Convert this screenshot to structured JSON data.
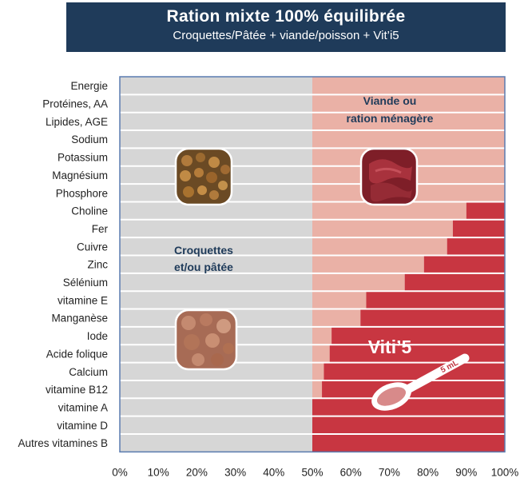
{
  "header": {
    "title": "Ration mixte 100% équilibrée",
    "subtitle": "Croquettes/Pâtée + viande/poisson + Vit’i5"
  },
  "chart_data": {
    "type": "bar",
    "orientation": "horizontal",
    "stacked": true,
    "categories": [
      "Energie",
      "Protéines, AA",
      "Lipides, AGE",
      "Sodium",
      "Potassium",
      "Magnésium",
      "Phosphore",
      "Choline",
      "Fer",
      "Cuivre",
      "Zinc",
      "Sélénium",
      "vitamine E",
      "Manganèse",
      "Iode",
      "Acide folique",
      "Calcium",
      "vitamine B12",
      "vitamine A",
      "vitamine D",
      "Autres vitamines B"
    ],
    "series": [
      {
        "values": [
          50,
          50,
          50,
          50,
          50,
          50,
          50,
          50,
          50,
          50,
          50,
          50,
          50,
          50,
          50,
          50,
          50,
          50,
          50,
          50,
          50
        ]
      },
      {
        "values": [
          50,
          50,
          50,
          50,
          50,
          50,
          50,
          40,
          36.5,
          35,
          29,
          24,
          14,
          12.5,
          5,
          4.5,
          3,
          2.5,
          0,
          0,
          0
        ]
      },
      {
        "values": [
          0,
          0,
          0,
          0,
          0,
          0,
          0,
          10,
          13.5,
          15,
          21,
          26,
          36,
          37.5,
          45,
          45.5,
          47,
          47.5,
          50,
          50,
          50
        ]
      }
    ],
    "x_ticks": [
      "0%",
      "10%",
      "20%",
      "30%",
      "40%",
      "50%",
      "60%",
      "70%",
      "80%",
      "90%",
      "100%"
    ],
    "xlim": [
      0,
      100
    ],
    "grid": false,
    "annotations": {
      "croquettes": [
        "Croquettes",
        "et/ou pâtée"
      ],
      "viande": [
        "Viande ou",
        "ration ménagère"
      ],
      "viti": "Viti’5",
      "spoon": "5 mL"
    },
    "colors": {
      "croquettes": "#d6d6d6",
      "viande": "#eab1a6",
      "viti": "#c83641",
      "header_bg": "#1f3b5a",
      "axis_frame": "#5a7bb0"
    },
    "icons": [
      "croquettes-photo-icon",
      "meat-photo-icon",
      "pate-photo-icon",
      "spoon-icon"
    ]
  }
}
